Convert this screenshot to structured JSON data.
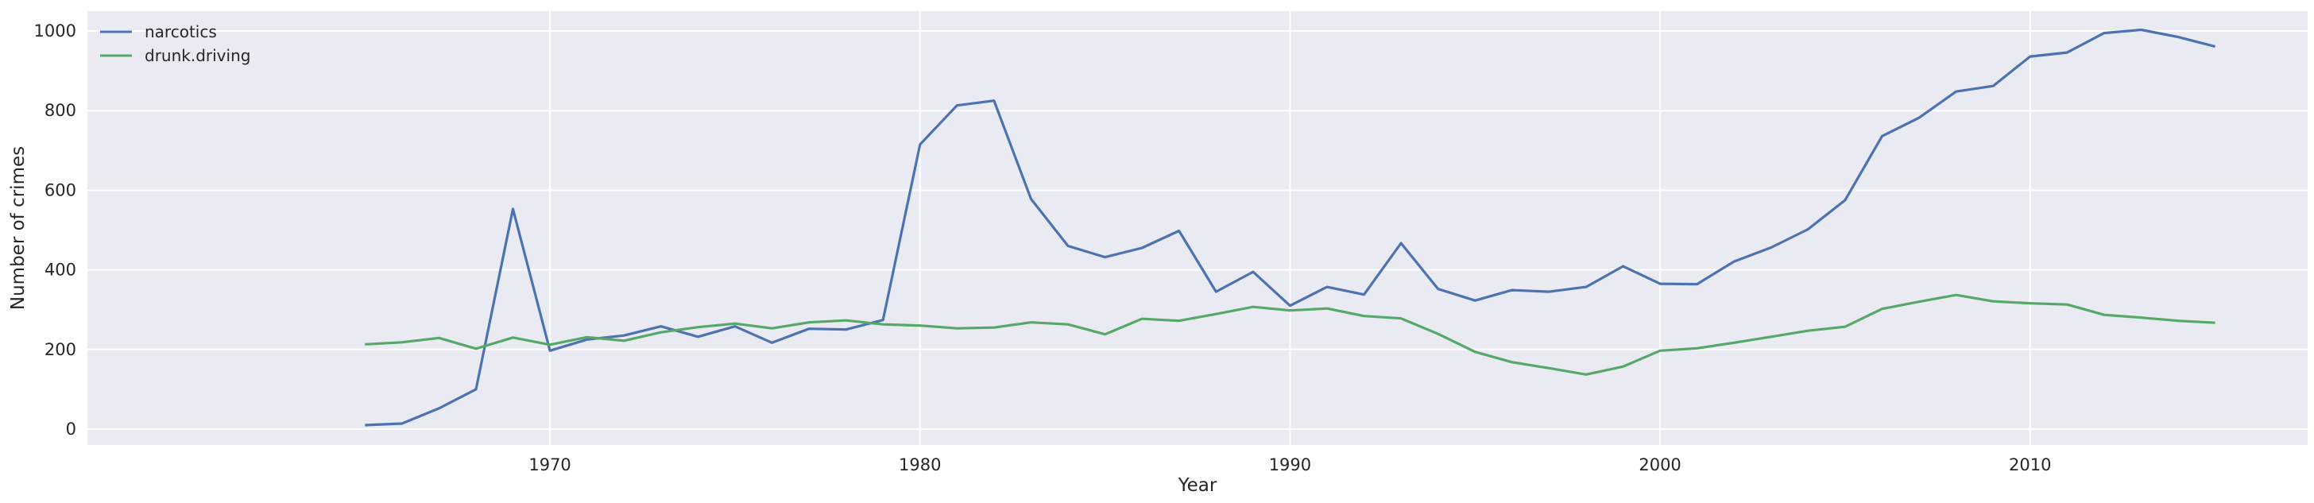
{
  "chart_data": {
    "type": "line",
    "title": "",
    "xlabel": "Year",
    "ylabel": "Number of crimes",
    "xlim": [
      1957.5,
      2017.5
    ],
    "ylim": [
      -40,
      1050
    ],
    "xticks": [
      1970,
      1980,
      1990,
      2000,
      2010
    ],
    "yticks": [
      0,
      200,
      400,
      600,
      800,
      1000
    ],
    "grid": true,
    "legend_position": "top-left",
    "x": [
      1965,
      1966,
      1967,
      1968,
      1969,
      1970,
      1971,
      1972,
      1973,
      1974,
      1975,
      1976,
      1977,
      1978,
      1979,
      1980,
      1981,
      1982,
      1983,
      1984,
      1985,
      1986,
      1987,
      1988,
      1989,
      1990,
      1991,
      1992,
      1993,
      1994,
      1995,
      1996,
      1997,
      1998,
      1999,
      2000,
      2001,
      2002,
      2003,
      2004,
      2005,
      2006,
      2007,
      2008,
      2009,
      2010,
      2011,
      2012,
      2013,
      2014,
      2015
    ],
    "series": [
      {
        "name": "narcotics",
        "color": "#4c72b0",
        "values": [
          10,
          14,
          52,
          100,
          553,
          197,
          225,
          235,
          258,
          232,
          258,
          217,
          252,
          250,
          274,
          715,
          813,
          825,
          578,
          460,
          432,
          455,
          498,
          345,
          395,
          310,
          357,
          338,
          467,
          352,
          323,
          349,
          345,
          357,
          409,
          365,
          364,
          421,
          456,
          502,
          575,
          736,
          782,
          848,
          862,
          936,
          946,
          995,
          1003,
          985,
          961
        ]
      },
      {
        "name": "drunk.driving",
        "color": "#55a868",
        "values": [
          213,
          218,
          229,
          202,
          230,
          212,
          231,
          222,
          243,
          256,
          265,
          253,
          268,
          273,
          263,
          260,
          253,
          255,
          268,
          263,
          238,
          277,
          272,
          289,
          307,
          298,
          303,
          284,
          278,
          239,
          194,
          168,
          153,
          137,
          157,
          197,
          203,
          217,
          232,
          247,
          257,
          302,
          320,
          337,
          321,
          316,
          313,
          287,
          280,
          272,
          267
        ]
      }
    ]
  }
}
